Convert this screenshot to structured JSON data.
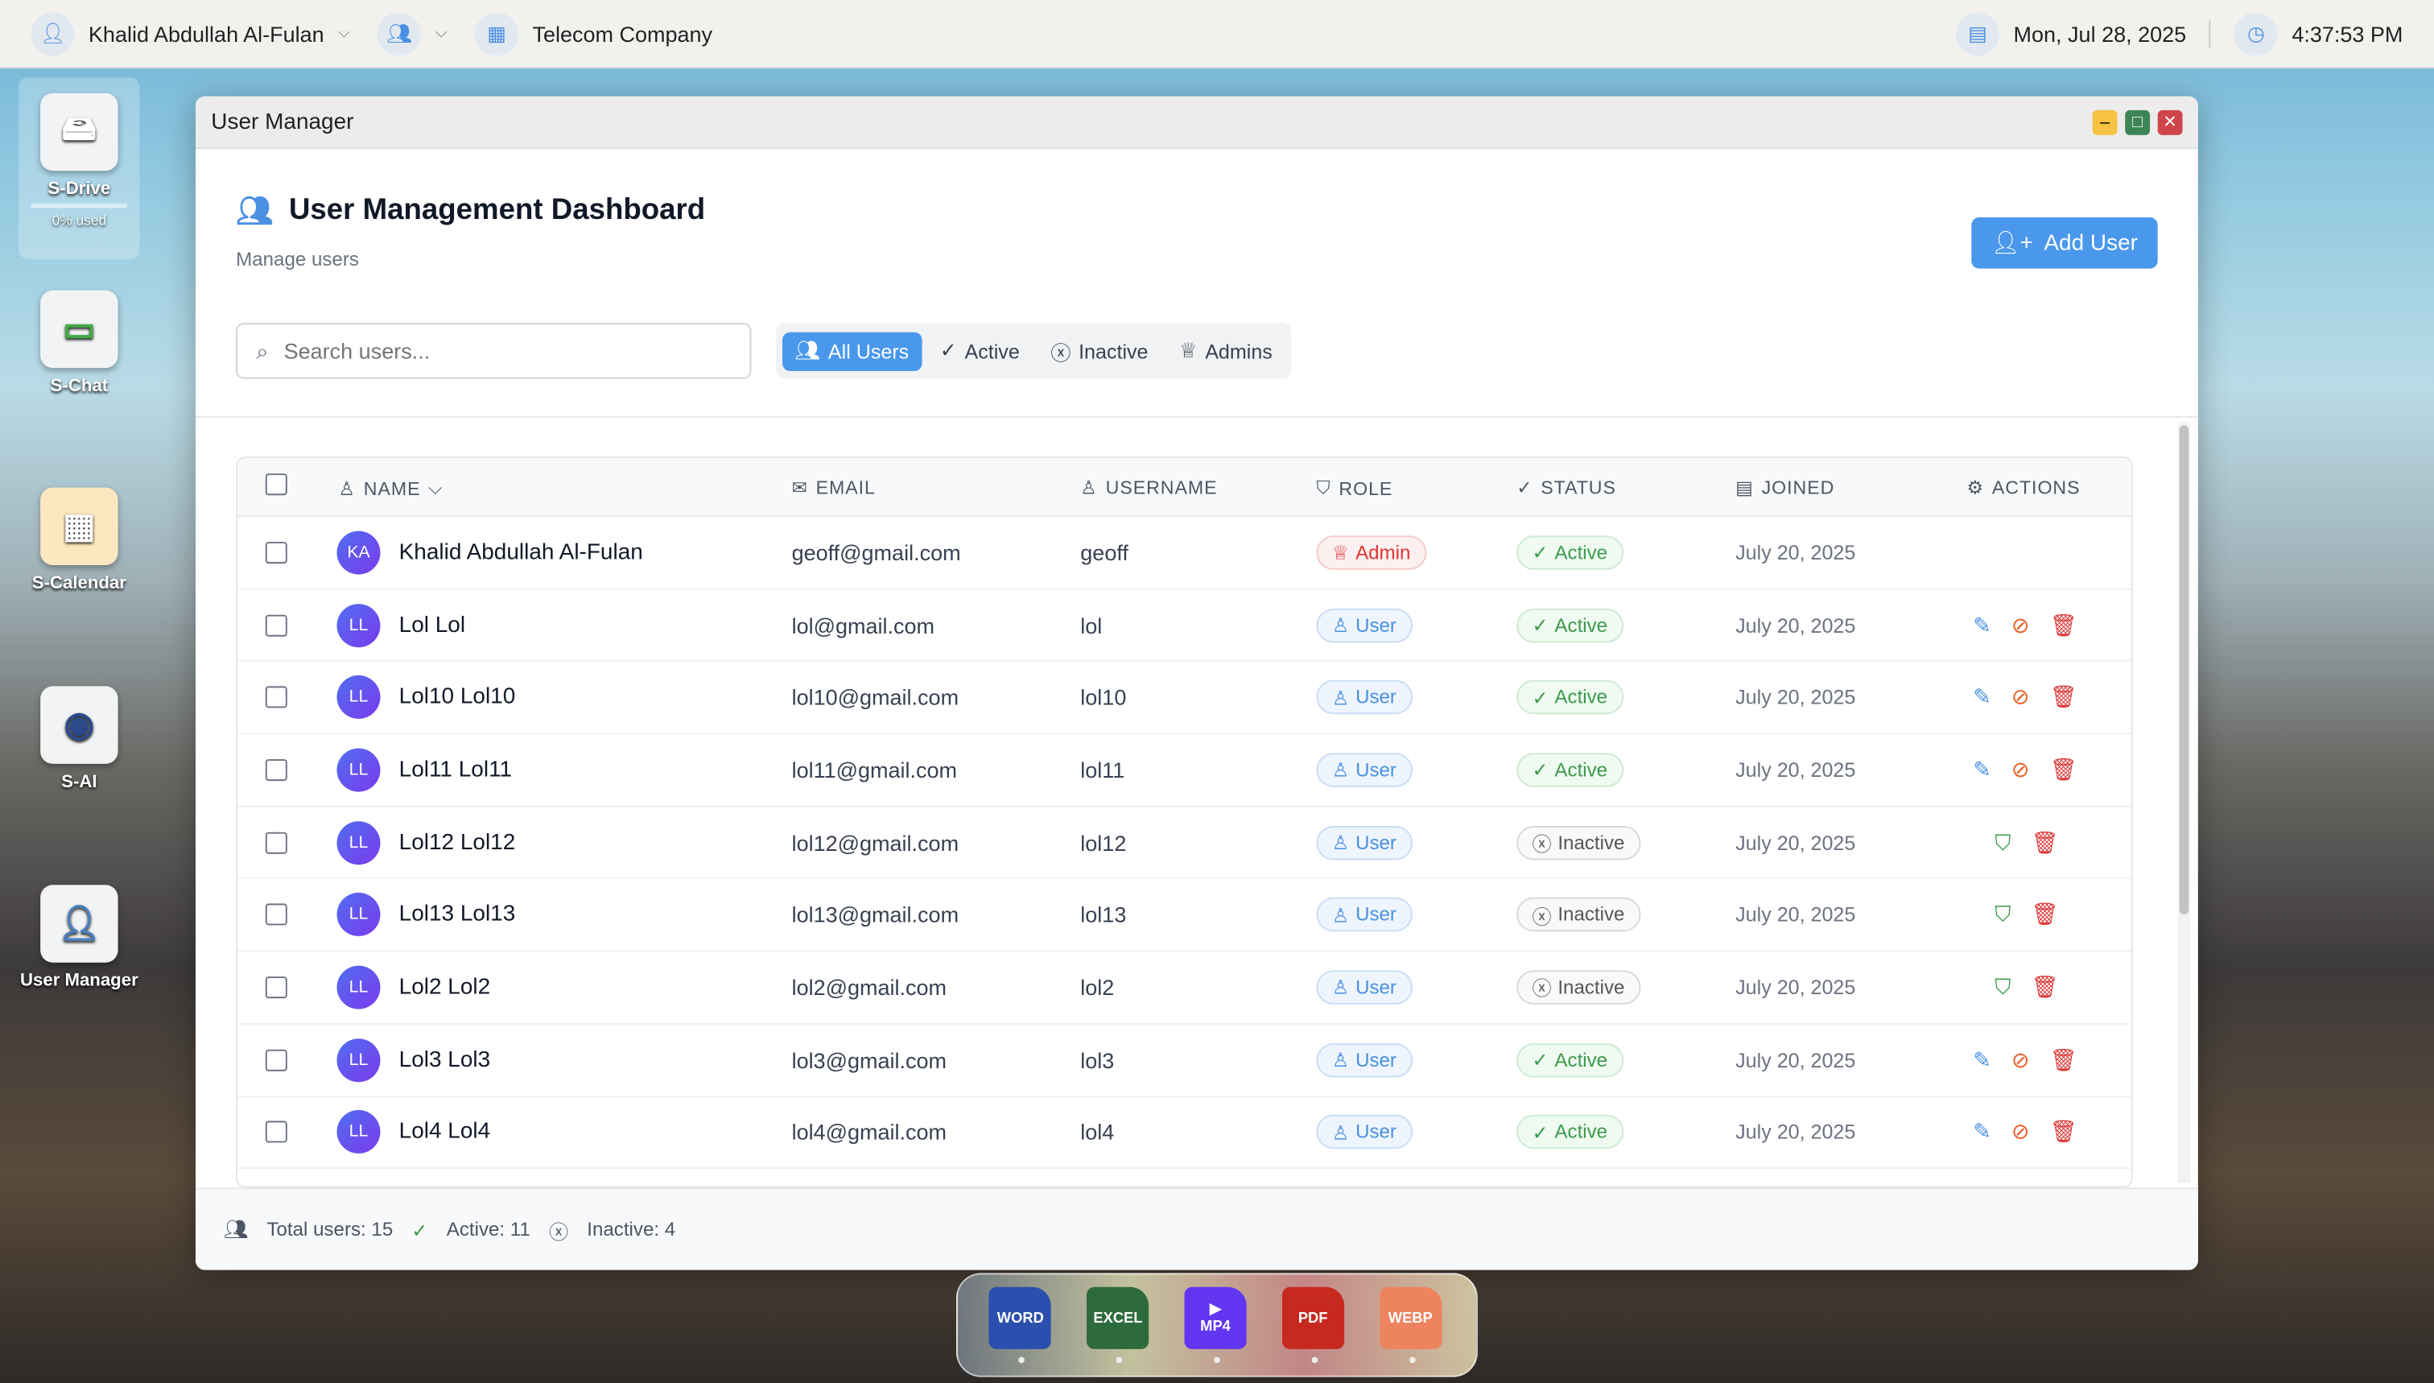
{
  "topbar": {
    "user_name": "Khalid Abdullah Al-Fulan",
    "company": "Telecom Company",
    "date": "Mon, Jul 28, 2025",
    "time": "4:37:53 PM"
  },
  "desktop": {
    "icons": [
      {
        "label": "S-Drive",
        "sub": "0% used"
      },
      {
        "label": "S-Chat"
      },
      {
        "label": "S-Calendar"
      },
      {
        "label": "S-AI"
      },
      {
        "label": "User Manager"
      }
    ]
  },
  "window": {
    "title": "User Manager"
  },
  "dashboard": {
    "title": "User Management Dashboard",
    "subtitle": "Manage users",
    "add_user": "Add User",
    "search_placeholder": "Search users...",
    "filters": [
      "All Users",
      "Active",
      "Inactive",
      "Admins"
    ],
    "active_filter": "All Users"
  },
  "table": {
    "headers": {
      "name": "NAME",
      "email": "EMAIL",
      "username": "USERNAME",
      "role": "ROLE",
      "status": "STATUS",
      "joined": "JOINED",
      "actions": "ACTIONS"
    },
    "rows": [
      {
        "initials": "KA",
        "name": "Khalid Abdullah Al-Fulan",
        "email": "geoff@gmail.com",
        "username": "geoff",
        "role": "Admin",
        "status": "Active",
        "joined": "July 20, 2025"
      },
      {
        "initials": "LL",
        "name": "Lol Lol",
        "email": "lol@gmail.com",
        "username": "lol",
        "role": "User",
        "status": "Active",
        "joined": "July 20, 2025"
      },
      {
        "initials": "LL",
        "name": "Lol10 Lol10",
        "email": "lol10@gmail.com",
        "username": "lol10",
        "role": "User",
        "status": "Active",
        "joined": "July 20, 2025"
      },
      {
        "initials": "LL",
        "name": "Lol11 Lol11",
        "email": "lol11@gmail.com",
        "username": "lol11",
        "role": "User",
        "status": "Active",
        "joined": "July 20, 2025"
      },
      {
        "initials": "LL",
        "name": "Lol12 Lol12",
        "email": "lol12@gmail.com",
        "username": "lol12",
        "role": "User",
        "status": "Inactive",
        "joined": "July 20, 2025"
      },
      {
        "initials": "LL",
        "name": "Lol13 Lol13",
        "email": "lol13@gmail.com",
        "username": "lol13",
        "role": "User",
        "status": "Inactive",
        "joined": "July 20, 2025"
      },
      {
        "initials": "LL",
        "name": "Lol2 Lol2",
        "email": "lol2@gmail.com",
        "username": "lol2",
        "role": "User",
        "status": "Inactive",
        "joined": "July 20, 2025"
      },
      {
        "initials": "LL",
        "name": "Lol3 Lol3",
        "email": "lol3@gmail.com",
        "username": "lol3",
        "role": "User",
        "status": "Active",
        "joined": "July 20, 2025"
      },
      {
        "initials": "LL",
        "name": "Lol4 Lol4",
        "email": "lol4@gmail.com",
        "username": "lol4",
        "role": "User",
        "status": "Active",
        "joined": "July 20, 2025"
      }
    ]
  },
  "footer": {
    "total": "Total users: 15",
    "active": "Active: 11",
    "inactive": "Inactive: 4"
  },
  "dock": [
    {
      "label": "WORD",
      "color": "#2a4fae"
    },
    {
      "label": "EXCEL",
      "color": "#2e6b3c"
    },
    {
      "label": "MP4",
      "color": "#6236f0"
    },
    {
      "label": "PDF",
      "color": "#c7291f"
    },
    {
      "label": "WEBP",
      "color": "#ee8360"
    }
  ]
}
